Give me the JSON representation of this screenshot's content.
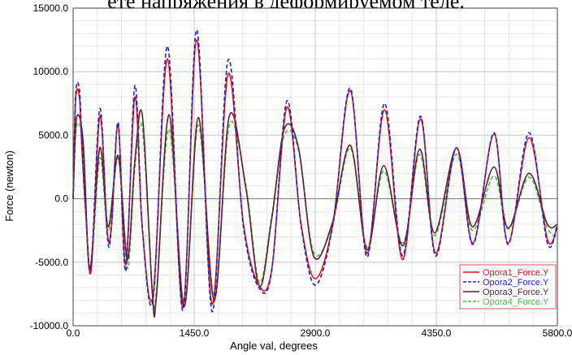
{
  "header_text": "ете напряжения в деформируемом теле.",
  "chart_data": {
    "type": "line",
    "title": "",
    "xlabel": "Angle val, degrees",
    "ylabel": "Force (newton)",
    "xlim": [
      0,
      5800
    ],
    "ylim": [
      -10000,
      15000
    ],
    "x_ticks": [
      0,
      1450,
      2900,
      4350,
      5800
    ],
    "x_tick_labels": [
      "0.0",
      "1450.0",
      "2900.0",
      "4350.0",
      "5800.0"
    ],
    "y_ticks": [
      -10000,
      -5000,
      0,
      5000,
      10000,
      15000
    ],
    "y_tick_labels": [
      "-10000.0",
      "-5000.0",
      "0.0",
      "5000.0",
      "10000.0",
      "15000.0"
    ],
    "grid": true,
    "legend_position": "bottom-right",
    "series": [
      {
        "name": "Opora1_Force.Y",
        "color": "#e0101c",
        "dash": "solid",
        "x": [
          0,
          30,
          75,
          105,
          150,
          215,
          320,
          410,
          460,
          540,
          630,
          740,
          830,
          960,
          1130,
          1315,
          1480,
          1665,
          1855,
          2040,
          2225,
          2380,
          2560,
          2730,
          2900,
          3110,
          3320,
          3520,
          3730,
          3945,
          4160,
          4340,
          4590,
          4790,
          5040,
          5210,
          5460,
          5680,
          5800
        ],
        "y": [
          0,
          7800,
          8000,
          4000,
          -1000,
          -5700,
          6500,
          -2700,
          -2000,
          5800,
          -5200,
          8000,
          -2500,
          -7500,
          11000,
          -8500,
          12500,
          -8300,
          9800,
          -2000,
          -6800,
          -5500,
          7200,
          -2000,
          -6300,
          -2000,
          8500,
          -4300,
          7000,
          -4800,
          6300,
          -4300,
          4000,
          -3500,
          5100,
          -3500,
          4800,
          -3200,
          -2200
        ]
      },
      {
        "name": "Opora2_Force.Y",
        "color": "#2020c8",
        "dash": "dash",
        "x": [
          0,
          30,
          75,
          105,
          150,
          215,
          320,
          410,
          460,
          540,
          630,
          740,
          830,
          960,
          1130,
          1315,
          1480,
          1665,
          1855,
          2040,
          2225,
          2380,
          2560,
          2730,
          2900,
          3110,
          3320,
          3520,
          3730,
          3945,
          4160,
          4340,
          4590,
          4790,
          5040,
          5210,
          5460,
          5680,
          5800
        ],
        "y": [
          0,
          8200,
          8600,
          4500,
          -800,
          -5400,
          7100,
          -3000,
          -2200,
          6000,
          -5700,
          8900,
          -2400,
          -7800,
          12000,
          -8800,
          13300,
          -8900,
          10900,
          -2200,
          -7000,
          -5600,
          7700,
          -2100,
          -6800,
          -2100,
          8700,
          -4600,
          7500,
          -4500,
          6500,
          -4500,
          4000,
          -3600,
          5200,
          -3600,
          5200,
          -3500,
          -2000
        ]
      },
      {
        "name": "Opora3_Force.Y",
        "color": "#5a1f2b",
        "dash": "solid",
        "x": [
          0,
          40,
          120,
          200,
          320,
          420,
          540,
          650,
          740,
          830,
          950,
          1000,
          1150,
          1330,
          1500,
          1690,
          1870,
          2070,
          2230,
          2380,
          2530,
          2700,
          2880,
          3100,
          3320,
          3520,
          3720,
          3950,
          4150,
          4330,
          4590,
          4780,
          5040,
          5210,
          5460,
          5680,
          5800
        ],
        "y": [
          0,
          6300,
          4500,
          -5500,
          4000,
          -2200,
          3400,
          -4800,
          3000,
          6500,
          -7600,
          -7500,
          6600,
          -8500,
          6400,
          -8000,
          6500,
          800,
          -6900,
          -1500,
          5500,
          4000,
          -4500,
          -2000,
          4200,
          -4000,
          2600,
          -3700,
          3900,
          -2700,
          4000,
          -2200,
          2500,
          -2300,
          2000,
          -2000,
          -2000
        ]
      },
      {
        "name": "Opora4_Force.Y",
        "color": "#40c040",
        "dash": "dash",
        "x": [
          0,
          40,
          120,
          200,
          320,
          420,
          540,
          650,
          740,
          830,
          950,
          1000,
          1150,
          1330,
          1500,
          1690,
          1870,
          2070,
          2230,
          2380,
          2530,
          2700,
          2880,
          3100,
          3320,
          3520,
          3720,
          3950,
          4150,
          4330,
          4590,
          4780,
          5040,
          5210,
          5460,
          5680,
          5800
        ],
        "y": [
          0,
          5700,
          4000,
          -5900,
          3200,
          -2600,
          3200,
          -5500,
          2500,
          5500,
          -7200,
          -7100,
          5500,
          -8200,
          5800,
          -7700,
          5800,
          1000,
          -6600,
          -1300,
          5000,
          3800,
          -4200,
          -2200,
          4000,
          -3800,
          2200,
          -3500,
          3500,
          -2900,
          3500,
          -2500,
          1800,
          -2400,
          1700,
          -2300,
          -3000
        ]
      }
    ]
  }
}
